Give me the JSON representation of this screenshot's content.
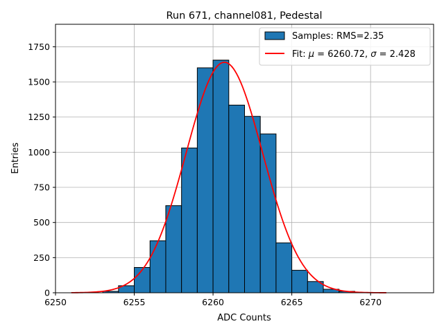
{
  "chart_data": {
    "type": "bar",
    "title": "Run 671, channel081, Pedestal",
    "xlabel": "ADC Counts",
    "ylabel": "Entries",
    "xlim": [
      6250,
      6274
    ],
    "ylim": [
      0,
      1910
    ],
    "xticks": [
      6250,
      6255,
      6260,
      6265,
      6270
    ],
    "yticks": [
      0,
      250,
      500,
      750,
      1000,
      1250,
      1500,
      1750
    ],
    "grid": true,
    "legend_position": "top-right",
    "histogram": {
      "name": "Samples: RMS=2.35",
      "bin_edges": [
        6253,
        6254,
        6255,
        6256,
        6257,
        6258,
        6259,
        6260,
        6261,
        6262,
        6263,
        6264,
        6265,
        6266,
        6267,
        6268,
        6269
      ],
      "counts": [
        10,
        50,
        180,
        370,
        620,
        1030,
        1600,
        1655,
        1335,
        1255,
        1130,
        355,
        160,
        80,
        25,
        10
      ],
      "color": "#1f77b4",
      "edgecolor": "#000000"
    },
    "fit": {
      "name": "Fit: μ = 6260.72, σ = 2.428",
      "name_parts": {
        "prefix": "Fit: ",
        "mu_symbol": "μ",
        "mu_text": " = 6260.72, ",
        "sigma_symbol": "σ",
        "sigma_text": " = 2.428"
      },
      "type": "gaussian",
      "mu": 6260.72,
      "sigma": 2.428,
      "amplitude": 1640,
      "x_range": [
        6251,
        6271
      ],
      "color": "#ff0000"
    }
  }
}
